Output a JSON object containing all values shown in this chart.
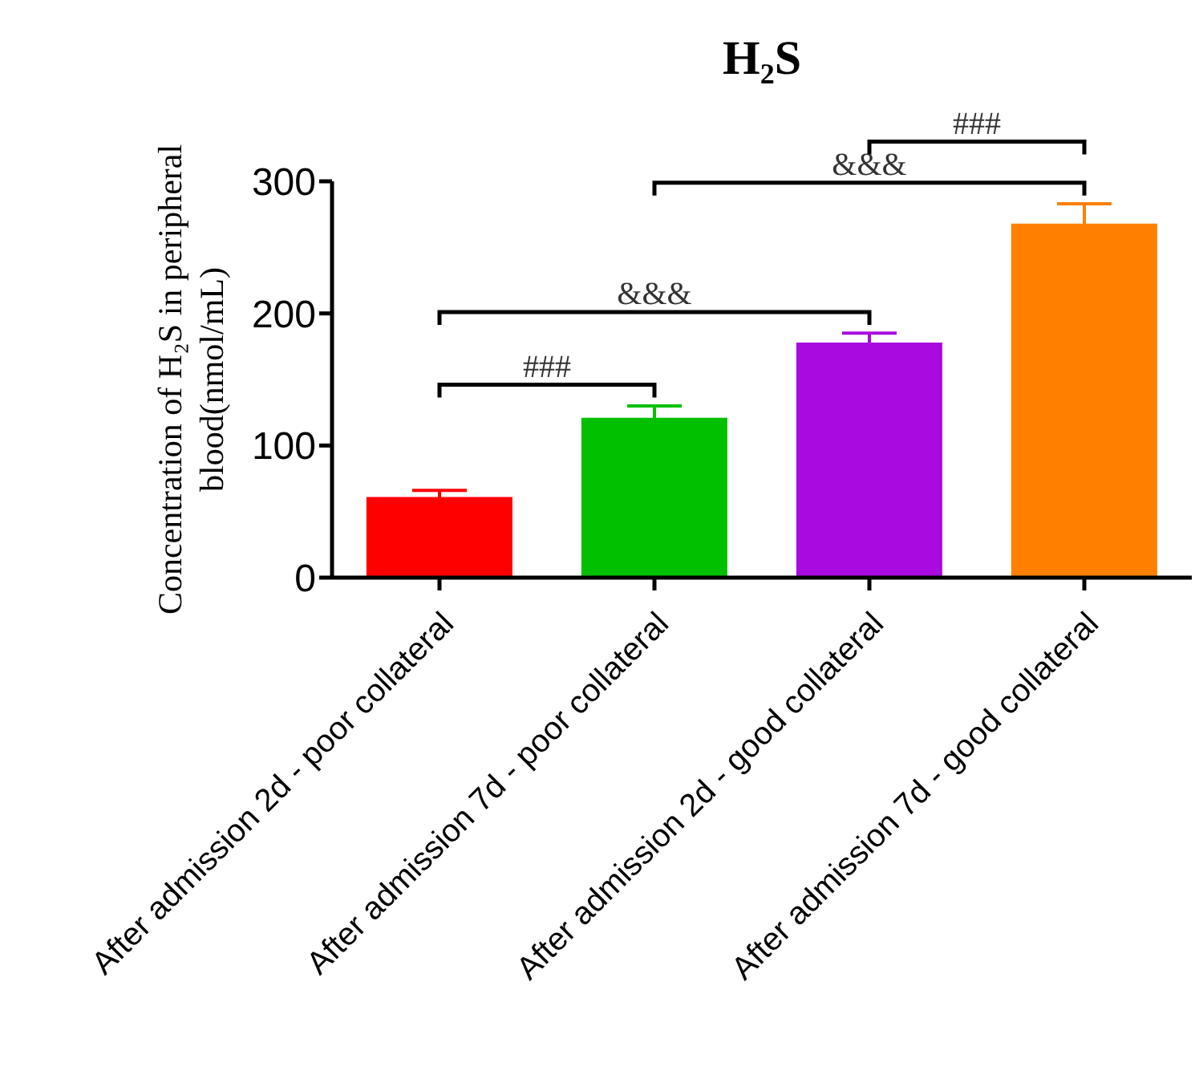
{
  "chart_data": {
    "type": "bar",
    "title": "H₂S",
    "ylabel": "Concentration of H₂S in peripheral blood(nmol/mL)",
    "categories": [
      "After admission 2d - poor collateral",
      "After admission 7d - poor collateral",
      "After admission 2d - good collateral",
      "After admission 7d - good collateral"
    ],
    "values": [
      61,
      121,
      178,
      268
    ],
    "errors": [
      5,
      9,
      7,
      15
    ],
    "colors": [
      "#ff0000",
      "#00c000",
      "#a80ae0",
      "#ff8000"
    ],
    "ylim": [
      0,
      300
    ],
    "yticks": [
      0,
      100,
      200,
      300
    ],
    "grid": false,
    "legend": false,
    "annotations": [
      "###",
      "&&&",
      "&&&",
      "###"
    ]
  }
}
